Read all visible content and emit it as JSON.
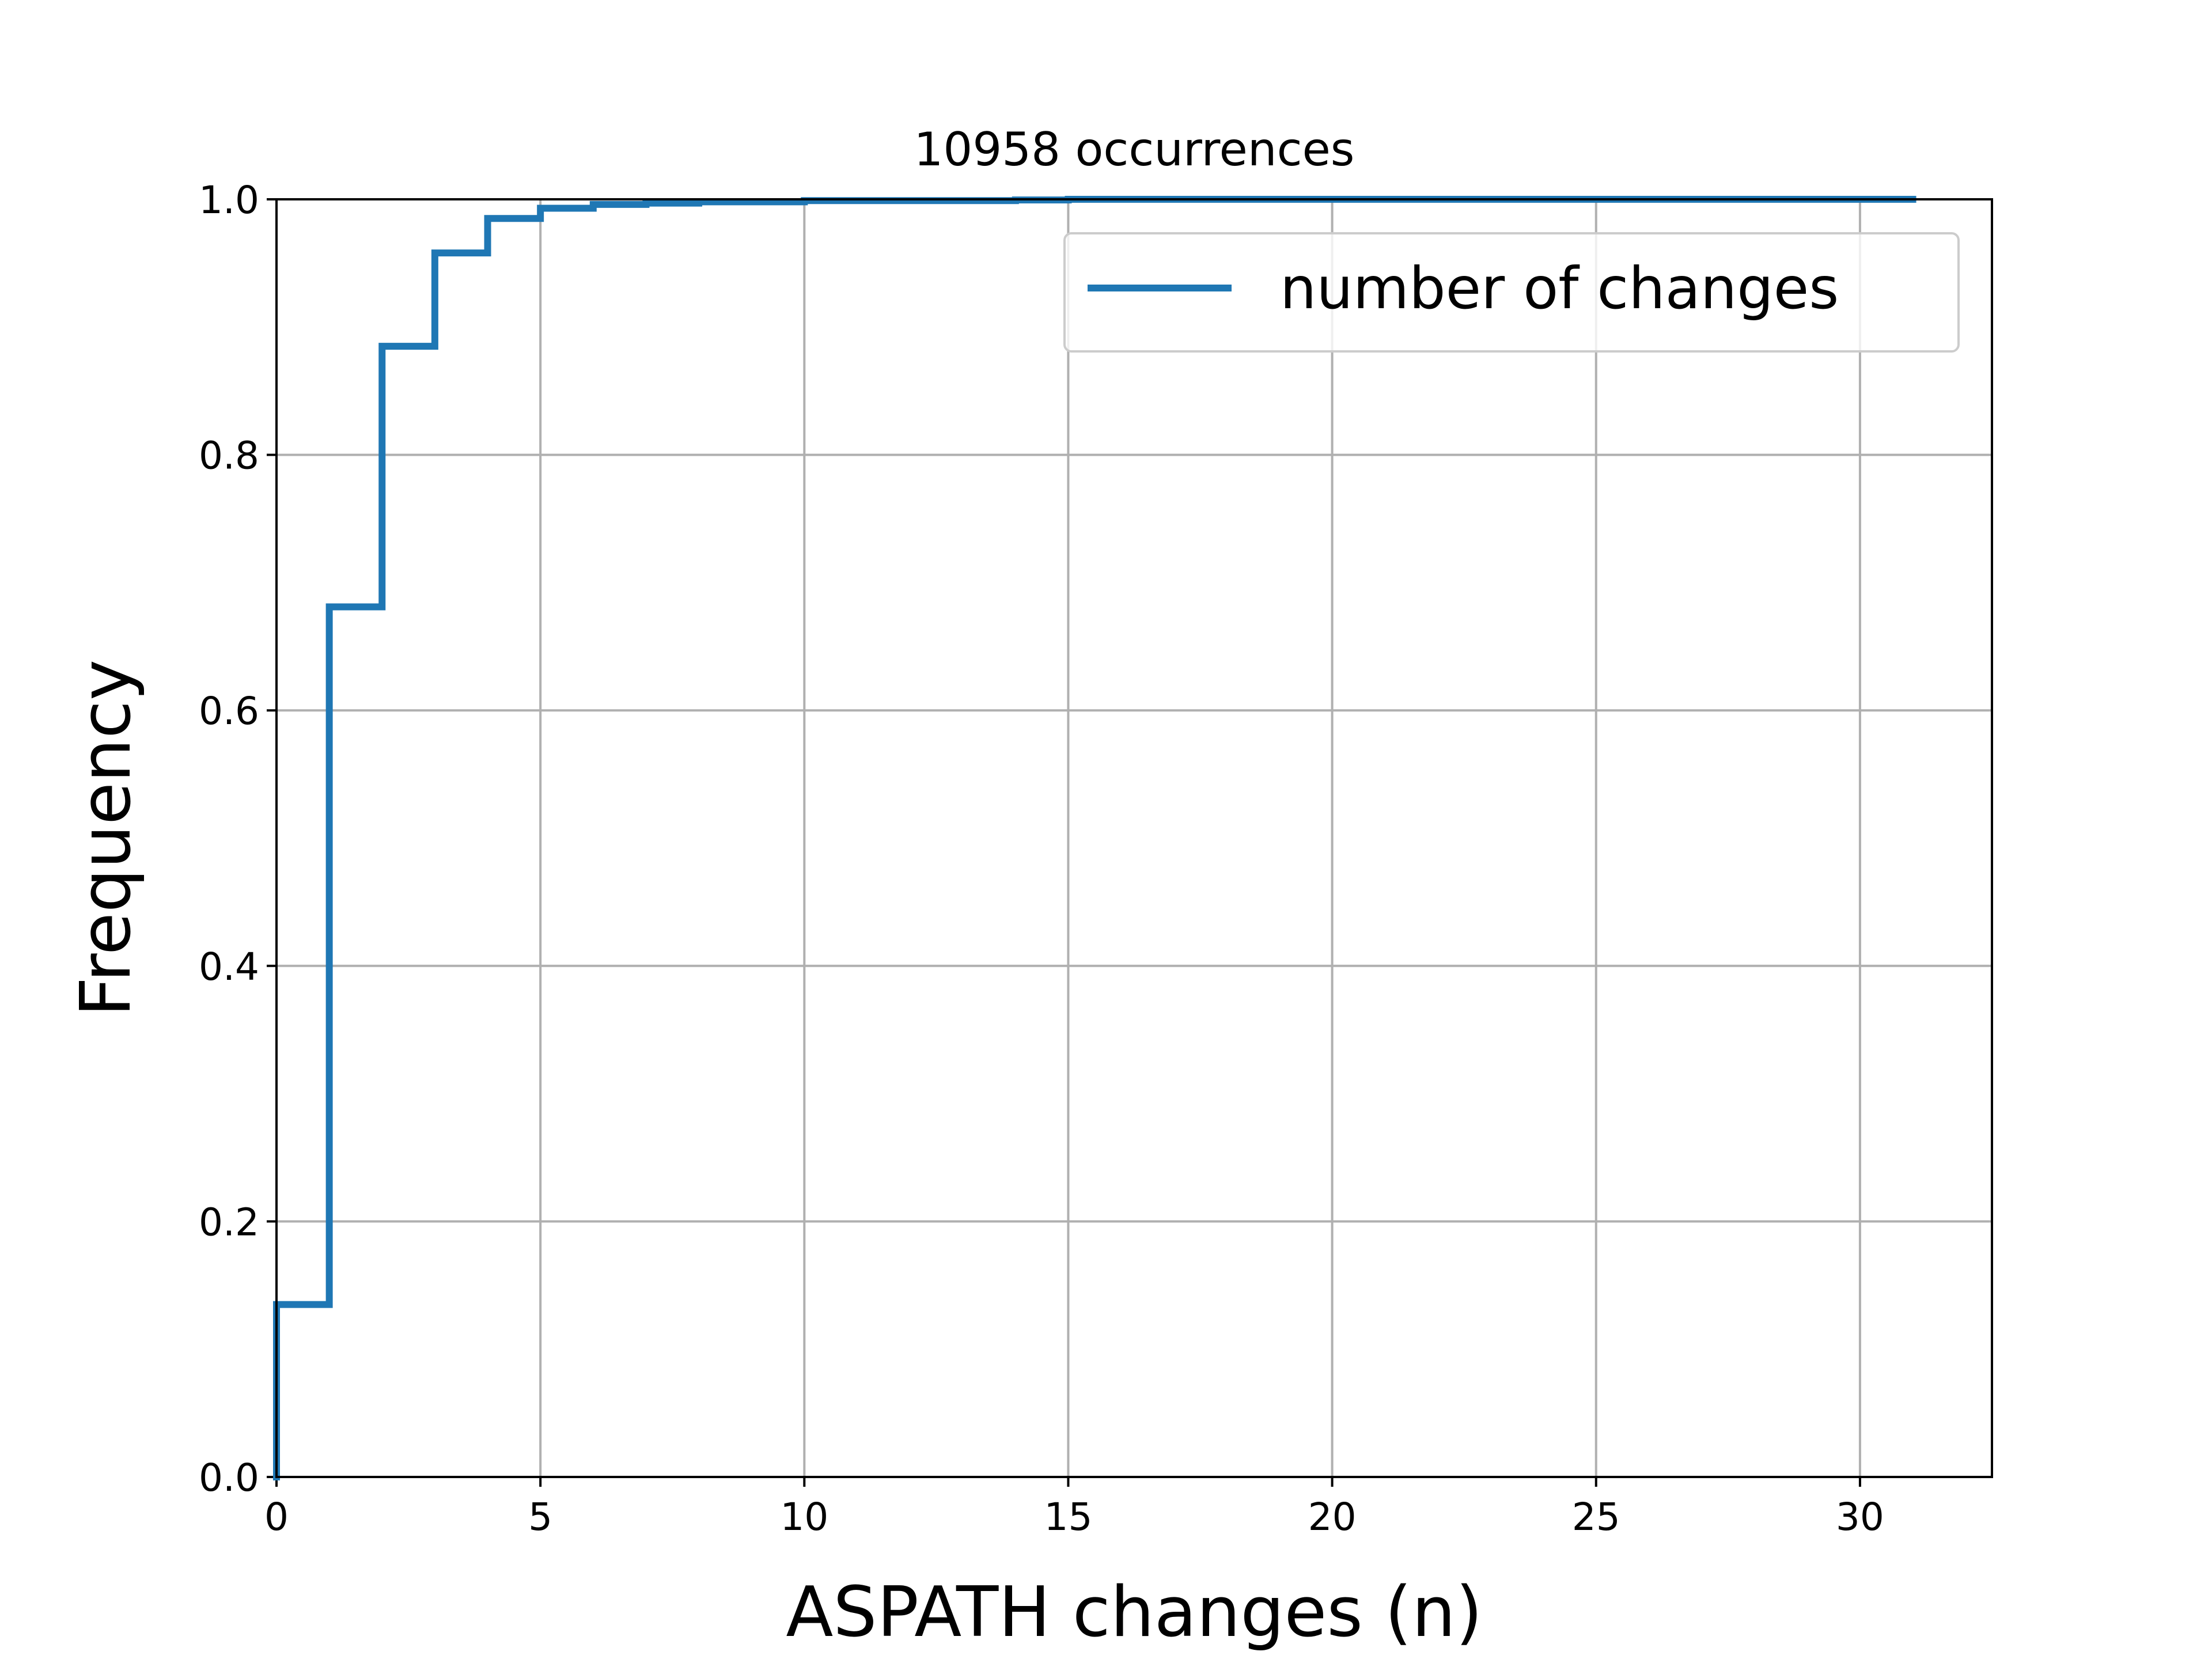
{
  "chart_data": {
    "type": "line",
    "drawstyle": "steps-post",
    "title": "10958 occurrences",
    "xlabel": "ASPATH changes (n)",
    "ylabel": "Frequency",
    "xlim": [
      0,
      32.5
    ],
    "ylim": [
      0,
      1.0
    ],
    "xticks": [
      0,
      5,
      10,
      15,
      20,
      25,
      30
    ],
    "xtick_labels": [
      "0",
      "5",
      "10",
      "15",
      "20",
      "25",
      "30"
    ],
    "yticks": [
      0.0,
      0.2,
      0.4,
      0.6,
      0.8,
      1.0
    ],
    "ytick_labels": [
      "0.0",
      "0.2",
      "0.4",
      "0.6",
      "0.8",
      "1.0"
    ],
    "grid": true,
    "legend_position": "top-right",
    "series": [
      {
        "name": "number of changes",
        "color": "#1f77b4",
        "x": [
          0,
          0,
          1,
          2,
          3,
          4,
          5,
          6,
          7,
          8,
          9,
          10,
          11,
          12,
          13,
          14,
          15,
          20,
          31
        ],
        "y": [
          0.0,
          0.135,
          0.681,
          0.885,
          0.958,
          0.985,
          0.993,
          0.996,
          0.997,
          0.998,
          0.998,
          0.999,
          0.999,
          0.999,
          0.999,
          0.9995,
          1.0,
          1.0,
          1.0
        ]
      }
    ]
  }
}
